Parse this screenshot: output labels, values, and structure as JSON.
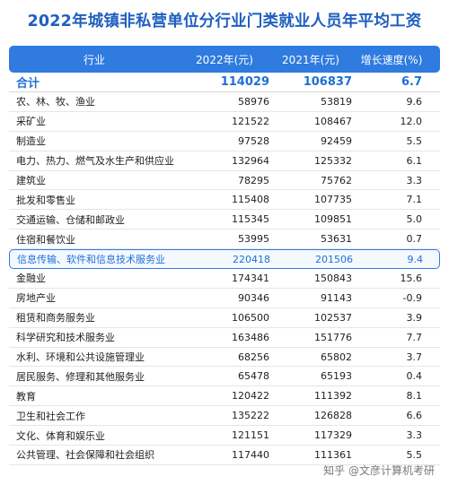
{
  "title": "2022年城镇非私营单位分行业门类就业人员年平均工资",
  "headers": [
    "行业",
    "2022年(元)",
    "2021年(元)",
    "增长速度(%)"
  ],
  "total": {
    "name": "合计",
    "y2022": "114029",
    "y2021": "106837",
    "growth": "6.7"
  },
  "rows": [
    {
      "name": "农、林、牧、渔业",
      "y2022": "58976",
      "y2021": "53819",
      "growth": "9.6"
    },
    {
      "name": "采矿业",
      "y2022": "121522",
      "y2021": "108467",
      "growth": "12.0"
    },
    {
      "name": "制造业",
      "y2022": "97528",
      "y2021": "92459",
      "growth": "5.5"
    },
    {
      "name": "电力、热力、燃气及水生产和供应业",
      "y2022": "132964",
      "y2021": "125332",
      "growth": "6.1"
    },
    {
      "name": "建筑业",
      "y2022": "78295",
      "y2021": "75762",
      "growth": "3.3"
    },
    {
      "name": "批发和零售业",
      "y2022": "115408",
      "y2021": "107735",
      "growth": "7.1"
    },
    {
      "name": "交通运输、仓储和邮政业",
      "y2022": "115345",
      "y2021": "109851",
      "growth": "5.0"
    },
    {
      "name": "住宿和餐饮业",
      "y2022": "53995",
      "y2021": "53631",
      "growth": "0.7"
    },
    {
      "name": "信息传输、软件和信息技术服务业",
      "y2022": "220418",
      "y2021": "201506",
      "growth": "9.4"
    },
    {
      "name": "金融业",
      "y2022": "174341",
      "y2021": "150843",
      "growth": "15.6"
    },
    {
      "name": "房地产业",
      "y2022": "90346",
      "y2021": "91143",
      "growth": "-0.9"
    },
    {
      "name": "租赁和商务服务业",
      "y2022": "106500",
      "y2021": "102537",
      "growth": "3.9"
    },
    {
      "name": "科学研究和技术服务业",
      "y2022": "163486",
      "y2021": "151776",
      "growth": "7.7"
    },
    {
      "name": "水利、环境和公共设施管理业",
      "y2022": "68256",
      "y2021": "65802",
      "growth": "3.7"
    },
    {
      "name": "居民服务、修理和其他服务业",
      "y2022": "65478",
      "y2021": "65193",
      "growth": "0.4"
    },
    {
      "name": "教育",
      "y2022": "120422",
      "y2021": "111392",
      "growth": "8.1"
    },
    {
      "name": "卫生和社会工作",
      "y2022": "135222",
      "y2021": "126828",
      "growth": "6.6"
    },
    {
      "name": "文化、体育和娱乐业",
      "y2022": "121151",
      "y2021": "117329",
      "growth": "3.3"
    },
    {
      "name": "公共管理、社会保障和社会组织",
      "y2022": "117440",
      "y2021": "111361",
      "growth": "5.5"
    }
  ],
  "highlight_row_index": 8,
  "watermark": "知乎 @文彦计算机考研",
  "colors": {
    "accent": "#2f7be0",
    "title": "#1f5fbf",
    "highlight_text": "#1f6fd6"
  }
}
